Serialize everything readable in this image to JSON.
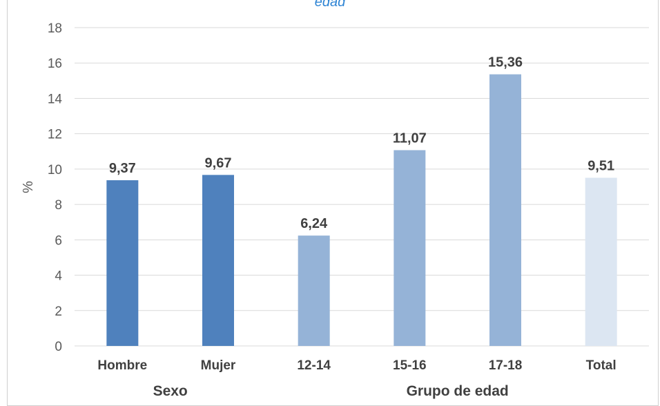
{
  "title_fragment": "edad",
  "colors": {
    "sexo": "#4f81bd",
    "grupo_edad": "#95b3d7",
    "total": "#dce6f2",
    "grid": "#d9d9d9",
    "text": "#595959",
    "labels": "#404040",
    "title": "#2e84d4"
  },
  "chart_data": {
    "type": "bar",
    "categories": [
      "Hombre",
      "Mujer",
      "12-14",
      "15-16",
      "17-18",
      "Total"
    ],
    "values": [
      9.37,
      9.67,
      6.24,
      11.07,
      15.36,
      9.51
    ],
    "data_labels": [
      "9,37",
      "9,67",
      "6,24",
      "11,07",
      "15,36",
      "9,51"
    ],
    "groups": [
      {
        "label": "Sexo",
        "categories": [
          "Hombre",
          "Mujer"
        ]
      },
      {
        "label": "Grupo de edad",
        "categories": [
          "12-14",
          "15-16",
          "17-18",
          "Total"
        ]
      }
    ],
    "bar_color_keys": [
      "sexo",
      "sexo",
      "grupo_edad",
      "grupo_edad",
      "grupo_edad",
      "total"
    ],
    "ylabel": "%",
    "ylim": [
      0,
      18
    ],
    "yticks": [
      0,
      2,
      4,
      6,
      8,
      10,
      12,
      14,
      16,
      18
    ],
    "grid": true,
    "legend": "none"
  }
}
